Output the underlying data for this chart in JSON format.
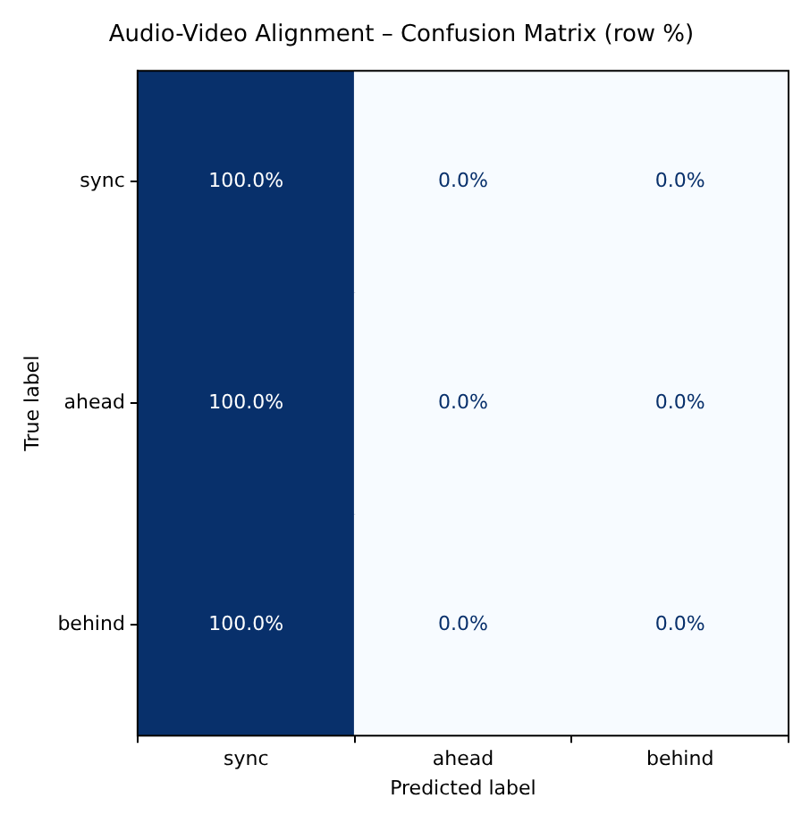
{
  "chart_data": {
    "type": "heatmap",
    "title": "Audio-Video Alignment – Confusion Matrix (row %)",
    "xlabel": "Predicted label",
    "ylabel": "True label",
    "categories": [
      "sync",
      "ahead",
      "behind"
    ],
    "y_categories": [
      "sync",
      "ahead",
      "behind"
    ],
    "cells": [
      [
        100,
        0,
        0
      ],
      [
        100,
        0,
        0
      ],
      [
        100,
        0,
        0
      ]
    ],
    "cell_labels": [
      [
        "100.0%",
        "0.0%",
        "0.0%"
      ],
      [
        "100.0%",
        "0.0%",
        "0.0%"
      ],
      [
        "100.0%",
        "0.0%",
        "0.0%"
      ]
    ]
  }
}
